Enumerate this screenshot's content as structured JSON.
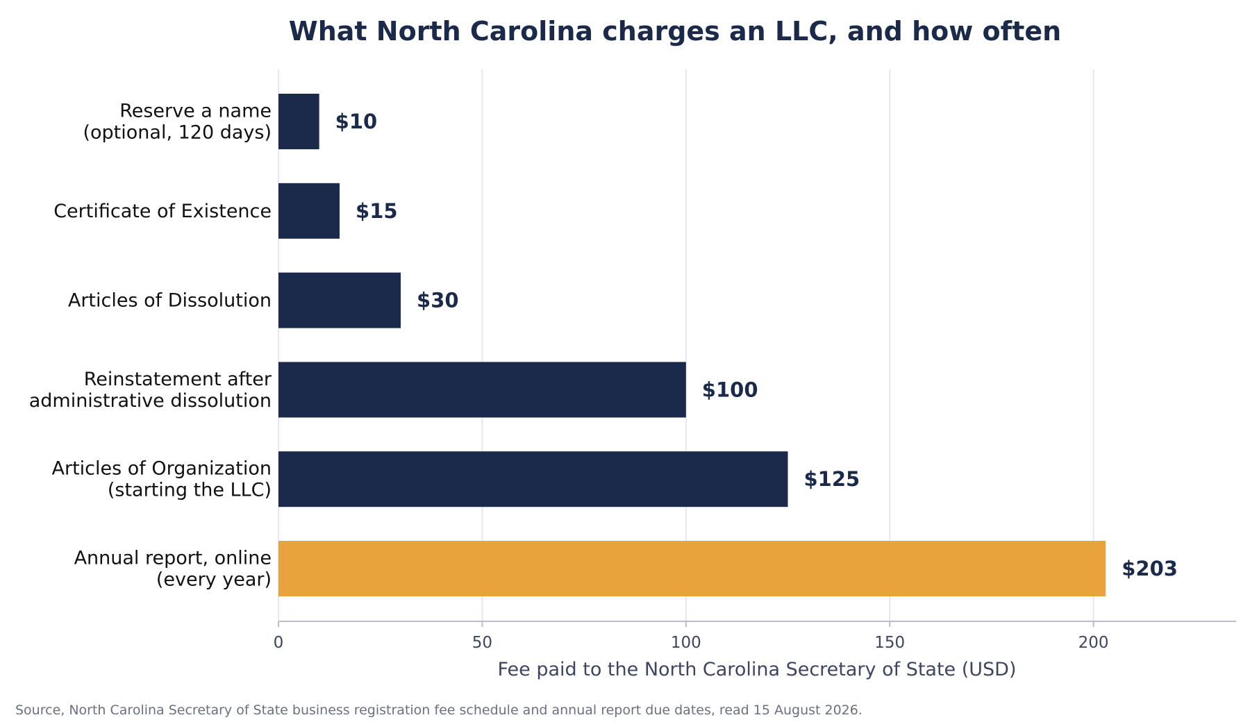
{
  "chart_data": {
    "type": "bar",
    "orientation": "horizontal",
    "title": "What North Carolina charges an LLC, and how often",
    "xlabel": "Fee paid to the North Carolina Secretary of State (USD)",
    "ylabel": "",
    "xlim": [
      0,
      235
    ],
    "x_ticks": [
      0,
      50,
      100,
      150,
      200
    ],
    "grid": "vertical",
    "categories": [
      [
        "Reserve a name",
        "(optional, 120 days)"
      ],
      [
        "Certificate of Existence"
      ],
      [
        "Articles of Dissolution"
      ],
      [
        "Reinstatement after",
        "administrative dissolution"
      ],
      [
        "Articles of Organization",
        "(starting the LLC)"
      ],
      [
        "Annual report, online",
        "(every year)"
      ]
    ],
    "values": [
      10,
      15,
      30,
      100,
      125,
      203
    ],
    "value_labels": [
      "$10",
      "$15",
      "$30",
      "$100",
      "$125",
      "$203"
    ],
    "highlight_index": 5,
    "colors": {
      "bar": "#1b2a4a",
      "highlight": "#e8a33c",
      "grid": "#e4e6f0",
      "axis": "#b9bccb"
    }
  },
  "footer": {
    "source": "Source, North Carolina Secretary of State business registration fee schedule and annual report due dates, read 15 August 2026."
  }
}
